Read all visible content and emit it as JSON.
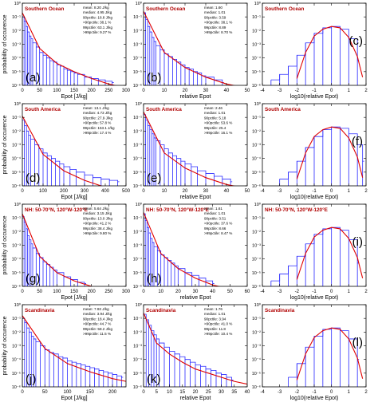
{
  "figure": {
    "ylabel": "probability of occurence",
    "ytick_labels": [
      "10⁰",
      "10⁻¹",
      "10⁻²",
      "10⁻³",
      "10⁻⁴",
      "10⁻⁵",
      "10⁻⁶"
    ]
  },
  "colors": {
    "histogram": "#2a2aff",
    "fit": "#e00000",
    "title": "#b00000",
    "axis": "#000000"
  },
  "chart_data": [
    {
      "type": "histogram",
      "panel_letter": "(a)",
      "region": "Southern Ocean",
      "xlabel": "Epot  [J/kg]",
      "xlim": [
        0,
        300
      ],
      "xticks": [
        0,
        50,
        100,
        150,
        200,
        250,
        300
      ],
      "ylim_log10": [
        -6,
        0
      ],
      "y_scale": "log",
      "stats": [
        "mean:  8.20 J/kg",
        "median: 4.95 J/kg",
        "90pctile: 18.8 J/kg",
        ">90pctile: 38.1 %",
        "99pctile: 63.1 J/kg",
        ">99pctile: 9.27 %"
      ],
      "histogram": {
        "x": [
          0,
          5,
          10,
          15,
          20,
          25,
          30,
          40,
          50,
          60,
          70,
          80,
          90,
          100,
          110,
          120,
          130,
          140,
          150,
          160,
          180,
          200,
          220,
          240,
          260
        ],
        "log10_p": [
          -1.0,
          -1.3,
          -1.7,
          -2.1,
          -2.4,
          -2.6,
          -2.9,
          -3.2,
          -3.6,
          -3.8,
          -4.0,
          -4.2,
          -4.3,
          -4.5,
          -4.6,
          -4.8,
          -4.9,
          -5.0,
          -5.1,
          -5.2,
          -5.4,
          -5.5,
          -5.6,
          -5.7,
          -5.8
        ]
      },
      "fit": {
        "x": [
          0,
          50,
          100,
          150,
          200,
          250,
          300
        ],
        "log10_p": [
          -0.7,
          -3.3,
          -4.4,
          -5.0,
          -5.5,
          -5.9,
          -6.2
        ]
      }
    },
    {
      "type": "histogram",
      "panel_letter": "(b)",
      "region": "Southern Ocean",
      "xlabel": "relative Epot",
      "xlim": [
        0,
        50
      ],
      "xticks": [
        0,
        10,
        20,
        30,
        40,
        50
      ],
      "ylim_log10": [
        -6,
        0
      ],
      "y_scale": "log",
      "stats": [
        "mean:  1.60",
        "median: 1.01",
        "90pctile: 3.59",
        ">90pctile: 38.1 %",
        "99pctile: 8.89",
        ">99pctile: 8.70 %"
      ],
      "histogram": {
        "x": [
          0,
          1,
          2,
          3,
          4,
          5,
          6,
          8,
          10,
          12,
          14,
          16,
          18,
          20,
          22,
          24,
          26,
          28,
          30,
          34,
          38
        ],
        "log10_p": [
          -0.7,
          -1.2,
          -1.7,
          -2.1,
          -2.5,
          -2.8,
          -3.1,
          -3.4,
          -3.7,
          -3.9,
          -4.1,
          -4.3,
          -4.5,
          -4.7,
          -4.8,
          -5.0,
          -5.1,
          -5.3,
          -5.4,
          -5.6,
          -5.8
        ]
      },
      "fit": {
        "x": [
          0,
          10,
          20,
          30,
          40,
          50
        ],
        "log10_p": [
          -0.6,
          -3.6,
          -4.7,
          -5.4,
          -5.9,
          -6.2
        ]
      }
    },
    {
      "type": "histogram",
      "panel_letter": "(c)",
      "region": "Southern Ocean",
      "xlabel": "log10(relative Epot)",
      "xlim": [
        -4,
        2
      ],
      "xticks": [
        -4,
        -3,
        -2,
        -1,
        0,
        1,
        2
      ],
      "ylim_log10": [
        -6,
        0
      ],
      "y_scale": "log",
      "stats": [],
      "histogram": {
        "x": [
          -3.5,
          -3.0,
          -2.5,
          -2.0,
          -1.5,
          -1.0,
          -0.5,
          0.0,
          0.5,
          1.0,
          1.5
        ],
        "log10_p": [
          -5.6,
          -5.2,
          -4.6,
          -3.8,
          -2.9,
          -2.2,
          -1.8,
          -1.7,
          -1.9,
          -2.6,
          -4.2
        ]
      },
      "fit": {
        "x": [
          -2.0,
          -1.5,
          -1.0,
          -0.5,
          0.0,
          0.5,
          1.0,
          1.5,
          1.8
        ],
        "log10_p": [
          -5.5,
          -3.6,
          -2.4,
          -1.9,
          -1.7,
          -1.8,
          -2.5,
          -3.9,
          -5.4
        ]
      }
    },
    {
      "type": "histogram",
      "panel_letter": "(d)",
      "region": "South America",
      "xlabel": "Epot  [J/kg]",
      "xlim": [
        0,
        500
      ],
      "xticks": [
        0,
        100,
        200,
        300,
        400,
        500
      ],
      "ylim_log10": [
        -6,
        0
      ],
      "y_scale": "log",
      "stats": [
        "mean:  13.1 J/kg",
        "median: 4.73 J/kg",
        "90pctile: 27.9 J/kg",
        ">90pctile: 57.8 %",
        "99pctile: 153.1 J/kg",
        ">99pctile: 17.4 %"
      ],
      "histogram": {
        "x": [
          0,
          10,
          20,
          30,
          40,
          60,
          80,
          100,
          120,
          140,
          160,
          180,
          200,
          230,
          260,
          300,
          340,
          380,
          420,
          460
        ],
        "log10_p": [
          -1.2,
          -1.6,
          -2.0,
          -2.3,
          -2.6,
          -3.0,
          -3.3,
          -3.6,
          -3.8,
          -4.0,
          -4.2,
          -4.4,
          -4.6,
          -4.8,
          -5.0,
          -5.2,
          -5.4,
          -5.5,
          -5.6,
          -5.7
        ]
      },
      "fit": {
        "x": [
          0,
          100,
          200,
          300,
          400,
          500
        ],
        "log10_p": [
          -0.9,
          -3.7,
          -4.9,
          -5.6,
          -6.1,
          -6.4
        ]
      }
    },
    {
      "type": "histogram",
      "panel_letter": "(e)",
      "region": "South America",
      "xlabel": "relative Epot",
      "xlim": [
        0,
        50
      ],
      "xticks": [
        0,
        10,
        20,
        30,
        40,
        50
      ],
      "ylim_log10": [
        -6,
        0
      ],
      "y_scale": "log",
      "stats": [
        "mean:  2.46",
        "median: 1.01",
        "90pctile: 5.18",
        ">90pctile: 53.6 %",
        "99pctile: 25.4",
        ">99pctile: 16.1 %"
      ],
      "histogram": {
        "x": [
          0,
          1,
          2,
          3,
          4,
          5,
          6,
          8,
          10,
          12,
          14,
          16,
          18,
          20,
          23,
          26,
          30,
          34,
          38,
          42
        ],
        "log10_p": [
          -0.8,
          -1.2,
          -1.6,
          -1.9,
          -2.2,
          -2.5,
          -2.7,
          -3.0,
          -3.3,
          -3.6,
          -3.8,
          -4.0,
          -4.2,
          -4.4,
          -4.6,
          -4.9,
          -5.1,
          -5.3,
          -5.5,
          -5.7
        ]
      },
      "fit": {
        "x": [
          0,
          10,
          20,
          30,
          40,
          50
        ],
        "log10_p": [
          -0.6,
          -3.6,
          -4.7,
          -5.4,
          -5.9,
          -6.2
        ]
      }
    },
    {
      "type": "histogram",
      "panel_letter": "(f)",
      "region": "South America",
      "xlabel": "log10(relative Epot)",
      "xlim": [
        -4,
        2
      ],
      "xticks": [
        -4,
        -3,
        -2,
        -1,
        0,
        1,
        2
      ],
      "ylim_log10": [
        -6,
        0
      ],
      "y_scale": "log",
      "stats": [],
      "histogram": {
        "x": [
          -3.0,
          -2.5,
          -2.0,
          -1.5,
          -1.0,
          -0.5,
          0.0,
          0.5,
          1.0,
          1.5,
          1.8
        ],
        "log10_p": [
          -5.5,
          -5.0,
          -4.2,
          -3.2,
          -2.4,
          -1.9,
          -1.7,
          -1.8,
          -2.2,
          -3.0,
          -4.2
        ]
      },
      "fit": {
        "x": [
          -2.0,
          -1.5,
          -1.0,
          -0.5,
          0.0,
          0.5,
          1.0,
          1.5,
          1.8
        ],
        "log10_p": [
          -5.5,
          -3.6,
          -2.4,
          -1.9,
          -1.7,
          -1.8,
          -2.5,
          -3.9,
          -5.4
        ]
      }
    },
    {
      "type": "histogram",
      "panel_letter": "(g)",
      "region": "NH: 50-70°N, 120°W-120°E",
      "xlabel": "Epot  [J/kg]",
      "xlim": [
        0,
        300
      ],
      "xticks": [
        0,
        50,
        100,
        150,
        200,
        250,
        300
      ],
      "ylim_log10": [
        -6,
        0
      ],
      "y_scale": "log",
      "stats": [
        "mean:  5.64 J/kg",
        "median: 3.15 J/kg",
        "90pctile: 13.0 J/kg",
        ">90pctile: 41.2 %",
        "99pctile: 38.4 J/kg",
        ">99pctile: 9.80 %"
      ],
      "histogram": {
        "x": [
          0,
          5,
          10,
          15,
          20,
          25,
          30,
          40,
          50,
          60,
          70,
          80,
          90,
          100,
          120,
          140,
          160,
          180
        ],
        "log10_p": [
          -0.9,
          -1.3,
          -1.8,
          -2.3,
          -2.6,
          -2.9,
          -3.2,
          -3.6,
          -3.9,
          -4.2,
          -4.4,
          -4.6,
          -4.8,
          -5.0,
          -5.3,
          -5.5,
          -5.7,
          -5.8
        ]
      },
      "fit": {
        "x": [
          0,
          50,
          100,
          150,
          200,
          250,
          300
        ],
        "log10_p": [
          -0.7,
          -3.8,
          -5.0,
          -5.6,
          -6.0,
          -6.3,
          -6.5
        ]
      }
    },
    {
      "type": "histogram",
      "panel_letter": "(h)",
      "region": "NH: 50-70°N, 120°W-120°E",
      "xlabel": "relative Epot",
      "xlim": [
        0,
        60
      ],
      "xticks": [
        0,
        10,
        20,
        30,
        40,
        50,
        60
      ],
      "ylim_log10": [
        -6,
        0
      ],
      "y_scale": "log",
      "stats": [
        "mean:  1.61",
        "median: 1.01",
        "90pctile: 3.51",
        ">90pctile: 37.6 %",
        "99pctile: 8.66",
        ">99pctile: 8.47 %"
      ],
      "histogram": {
        "x": [
          0,
          1,
          2,
          3,
          4,
          5,
          6,
          8,
          10,
          12,
          14,
          16,
          18,
          20,
          24,
          28,
          32,
          36,
          40
        ],
        "log10_p": [
          -0.7,
          -1.2,
          -1.7,
          -2.1,
          -2.5,
          -2.8,
          -3.1,
          -3.4,
          -3.7,
          -3.9,
          -4.1,
          -4.3,
          -4.5,
          -4.7,
          -5.0,
          -5.2,
          -5.4,
          -5.6,
          -5.8
        ]
      },
      "fit": {
        "x": [
          0,
          10,
          20,
          30,
          40,
          50,
          60
        ],
        "log10_p": [
          -0.6,
          -3.6,
          -4.7,
          -5.4,
          -5.9,
          -6.2,
          -6.4
        ]
      }
    },
    {
      "type": "histogram",
      "panel_letter": "(i)",
      "region": "NH: 50-70°N, 120°W-120°E",
      "xlabel": "log10(relative Epot)",
      "xlim": [
        -4,
        2
      ],
      "xticks": [
        -4,
        -3,
        -2,
        -1,
        0,
        1,
        2
      ],
      "ylim_log10": [
        -6,
        0
      ],
      "y_scale": "log",
      "stats": [],
      "histogram": {
        "x": [
          -3.5,
          -3.0,
          -2.5,
          -2.0,
          -1.5,
          -1.0,
          -0.5,
          0.0,
          0.5,
          1.0,
          1.5
        ],
        "log10_p": [
          -5.6,
          -5.1,
          -4.5,
          -3.8,
          -2.9,
          -2.2,
          -1.8,
          -1.7,
          -1.9,
          -2.6,
          -4.3
        ]
      },
      "fit": {
        "x": [
          -2.0,
          -1.5,
          -1.0,
          -0.5,
          0.0,
          0.5,
          1.0,
          1.5,
          1.8
        ],
        "log10_p": [
          -5.5,
          -3.6,
          -2.4,
          -1.9,
          -1.7,
          -1.8,
          -2.5,
          -3.9,
          -5.4
        ]
      }
    },
    {
      "type": "histogram",
      "panel_letter": "(j)",
      "region": "Scandinavia",
      "xlabel": "Epot  [J/kg]",
      "xlim": [
        0,
        230
      ],
      "xticks": [
        0,
        50,
        100,
        150,
        200
      ],
      "ylim_log10": [
        -6,
        0
      ],
      "y_scale": "log",
      "stats": [
        "mean:  7.93 J/kg",
        "median: 3.94 J/kg",
        "90pctile: 18.4 J/kg",
        ">90pctile: 44.7 %",
        "99pctile: 58.2 J/kg",
        ">99pctile: 11.5 %"
      ],
      "histogram": {
        "x": [
          0,
          5,
          10,
          15,
          20,
          25,
          30,
          40,
          50,
          60,
          70,
          80,
          90,
          100,
          110,
          120,
          130,
          140,
          150,
          160,
          170,
          180,
          190,
          200,
          210,
          220
        ],
        "log10_p": [
          -1.0,
          -1.3,
          -1.7,
          -2.0,
          -2.3,
          -2.5,
          -2.7,
          -3.0,
          -3.3,
          -3.5,
          -3.6,
          -3.8,
          -3.9,
          -4.1,
          -4.2,
          -4.3,
          -4.4,
          -4.5,
          -4.6,
          -4.7,
          -4.8,
          -4.9,
          -5.0,
          -5.1,
          -5.2,
          -5.3
        ]
      },
      "fit": {
        "x": [
          0,
          50,
          100,
          150,
          200,
          230
        ],
        "log10_p": [
          -0.8,
          -3.2,
          -4.3,
          -4.9,
          -5.4,
          -5.6
        ]
      }
    },
    {
      "type": "histogram",
      "panel_letter": "(k)",
      "region": "Scandinavia",
      "xlabel": "relative Epot",
      "xlim": [
        0,
        40
      ],
      "xticks": [
        0,
        5,
        10,
        15,
        20,
        25,
        30,
        35,
        40
      ],
      "ylim_log10": [
        -6,
        0
      ],
      "y_scale": "log",
      "stats": [
        "mean:  1.76",
        "median: 1.01",
        "90pctile: 3.94",
        ">90pctile: 41.0 %",
        "99pctile: 11.8",
        ">99pctile: 10.4 %"
      ],
      "histogram": {
        "x": [
          0,
          1,
          2,
          3,
          4,
          5,
          6,
          8,
          10,
          12,
          14,
          16,
          18,
          20,
          22,
          24,
          26,
          28,
          30,
          32,
          34
        ],
        "log10_p": [
          -0.7,
          -1.1,
          -1.5,
          -1.9,
          -2.2,
          -2.5,
          -2.8,
          -3.1,
          -3.4,
          -3.6,
          -3.8,
          -4.0,
          -4.2,
          -4.4,
          -4.5,
          -4.7,
          -4.8,
          -5.0,
          -5.1,
          -5.3,
          -5.5
        ]
      },
      "fit": {
        "x": [
          0,
          5,
          10,
          15,
          20,
          25,
          30,
          35,
          40
        ],
        "log10_p": [
          -0.6,
          -2.8,
          -3.6,
          -4.2,
          -4.7,
          -5.0,
          -5.3,
          -5.6,
          -5.8
        ]
      }
    },
    {
      "type": "histogram",
      "panel_letter": "(l)",
      "region": "Scandinavia",
      "xlabel": "log10(relative Epot)",
      "xlim": [
        -4,
        2
      ],
      "xticks": [
        -4,
        -3,
        -2,
        -1,
        0,
        1,
        2
      ],
      "ylim_log10": [
        -6,
        0
      ],
      "y_scale": "log",
      "stats": [],
      "histogram": {
        "x": [
          -2.5,
          -2.0,
          -1.5,
          -1.0,
          -0.5,
          0.0,
          0.5,
          1.0,
          1.5
        ],
        "log10_p": [
          -5.3,
          -4.3,
          -3.1,
          -2.3,
          -1.8,
          -1.7,
          -1.9,
          -2.5,
          -4.0
        ]
      },
      "fit": {
        "x": [
          -2.0,
          -1.5,
          -1.0,
          -0.5,
          0.0,
          0.5,
          1.0,
          1.5,
          1.8
        ],
        "log10_p": [
          -5.5,
          -3.6,
          -2.4,
          -1.9,
          -1.7,
          -1.8,
          -2.5,
          -3.9,
          -5.4
        ]
      }
    }
  ]
}
